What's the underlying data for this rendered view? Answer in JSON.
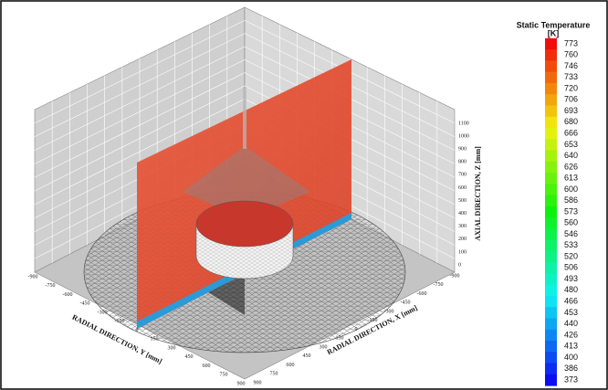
{
  "legend": {
    "title": "Static Temperature",
    "unit": "[K]",
    "levels": [
      773,
      760,
      746,
      733,
      720,
      706,
      693,
      680,
      666,
      653,
      640,
      626,
      613,
      600,
      586,
      573,
      560,
      546,
      533,
      520,
      506,
      493,
      480,
      466,
      453,
      440,
      426,
      413,
      400,
      386,
      373
    ]
  },
  "axes": {
    "y": {
      "title": "RADIAL DIRECTION, Y [mm]",
      "ticks": [
        -900,
        -750,
        -600,
        -450,
        -300,
        -150,
        0,
        150,
        300,
        450,
        600,
        750,
        900
      ]
    },
    "x": {
      "title": "RADIAL DIRECTION, X [mm]",
      "ticks": [
        900,
        750,
        600,
        450,
        300,
        150,
        0,
        -150,
        -300,
        -450,
        -600,
        -750,
        -900
      ]
    },
    "z": {
      "title": "AXIAL DIRECTION, Z [mm]",
      "ticks": [
        0,
        100,
        200,
        300,
        400,
        500,
        600,
        700,
        800,
        900,
        1000,
        1100
      ]
    }
  }
}
